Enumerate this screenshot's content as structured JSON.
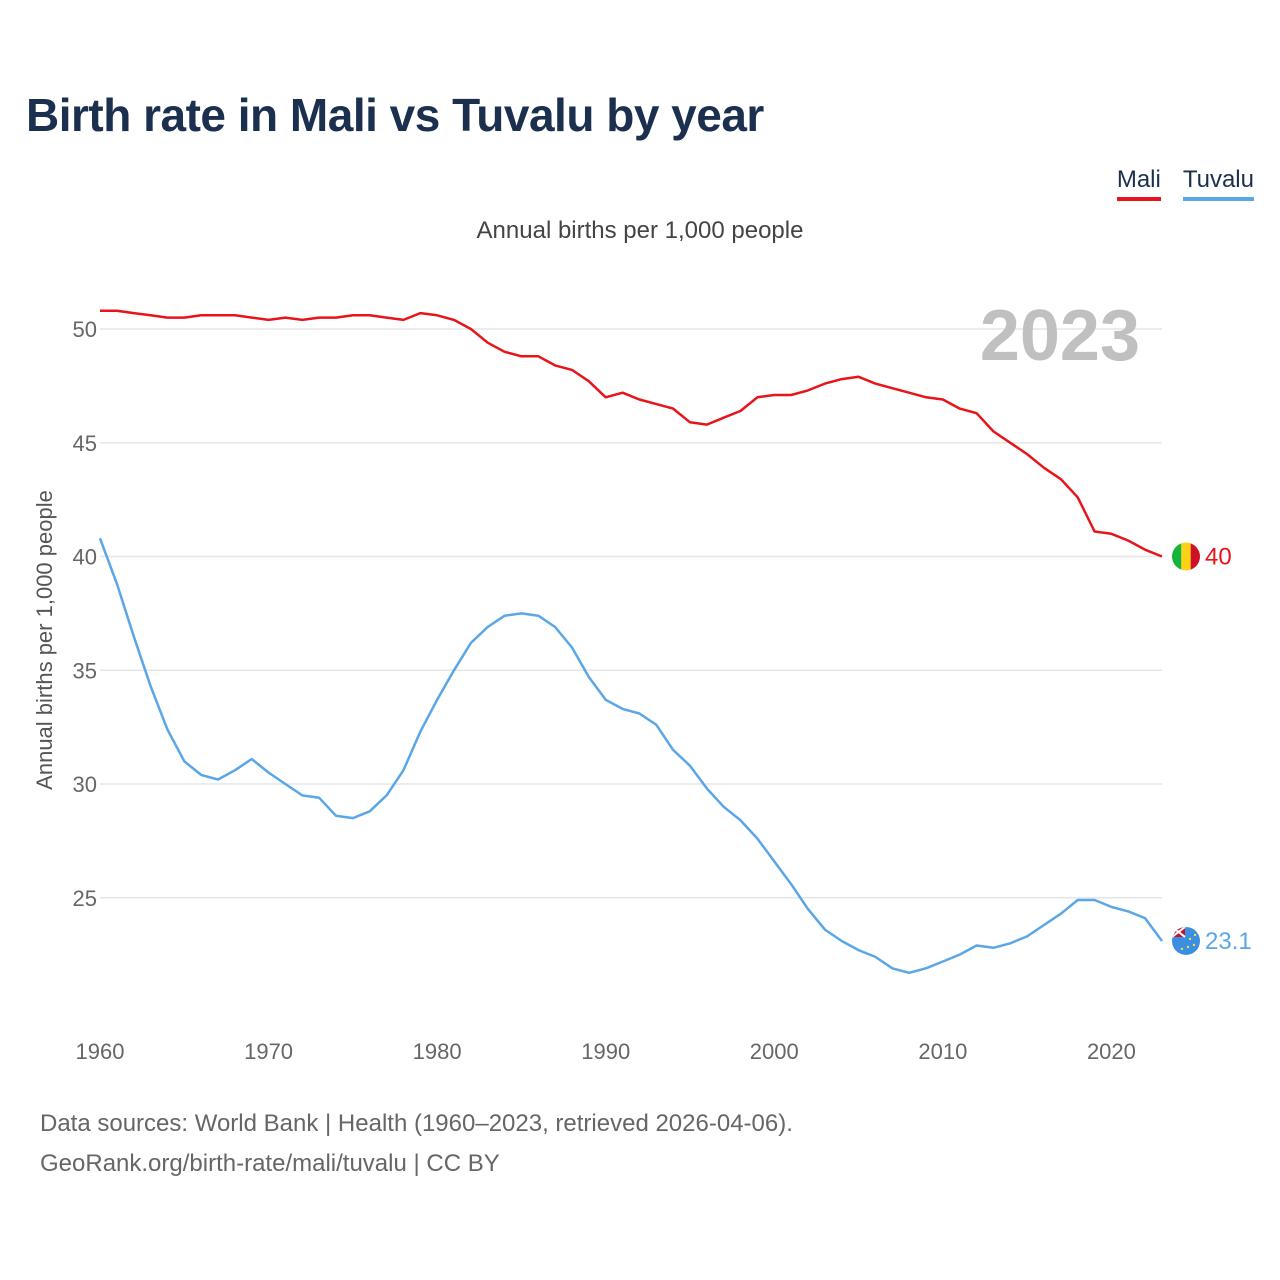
{
  "header": {
    "title": "Birth rate in Mali vs Tuvalu by year"
  },
  "legend": {
    "mali": "Mali",
    "tuvalu": "Tuvalu"
  },
  "footer": {
    "line1": "Data sources: World Bank | Health (1960–2023, retrieved 2026-04-06).",
    "line2": "GeoRank.org/birth-rate/mali/tuvalu | CC BY"
  },
  "colors": {
    "mali": "#e8141b",
    "tuvalu": "#5aa6e6",
    "title": "#1b2f4e"
  },
  "chart_data": {
    "type": "line",
    "title": "Birth rate in Mali vs Tuvalu by year",
    "subtitle": "Annual births per 1,000 people",
    "ylabel": "Annual births per 1,000 people",
    "xlabel": "",
    "highlight_year": "2023",
    "xlim": [
      1960,
      2023
    ],
    "ylim": [
      20,
      53
    ],
    "yticks": [
      25,
      30,
      35,
      40,
      45,
      50
    ],
    "xticks": [
      1960,
      1970,
      1980,
      1990,
      2000,
      2010,
      2020
    ],
    "grid": true,
    "legend_position": "top-right",
    "x": [
      1960,
      1961,
      1962,
      1963,
      1964,
      1965,
      1966,
      1967,
      1968,
      1969,
      1970,
      1971,
      1972,
      1973,
      1974,
      1975,
      1976,
      1977,
      1978,
      1979,
      1980,
      1981,
      1982,
      1983,
      1984,
      1985,
      1986,
      1987,
      1988,
      1989,
      1990,
      1991,
      1992,
      1993,
      1994,
      1995,
      1996,
      1997,
      1998,
      1999,
      2000,
      2001,
      2002,
      2003,
      2004,
      2005,
      2006,
      2007,
      2008,
      2009,
      2010,
      2011,
      2012,
      2013,
      2014,
      2015,
      2016,
      2017,
      2018,
      2019,
      2020,
      2021,
      2022,
      2023
    ],
    "series": [
      {
        "name": "Mali",
        "color": "#e8141b",
        "end_label": "40",
        "flag": "mali-flag",
        "values": [
          50.8,
          50.8,
          50.7,
          50.6,
          50.5,
          50.5,
          50.6,
          50.6,
          50.6,
          50.5,
          50.4,
          50.5,
          50.4,
          50.5,
          50.5,
          50.6,
          50.6,
          50.5,
          50.4,
          50.7,
          50.6,
          50.4,
          50.0,
          49.4,
          49.0,
          48.8,
          48.8,
          48.4,
          48.2,
          47.7,
          47.0,
          47.2,
          46.9,
          46.7,
          46.5,
          45.9,
          45.8,
          46.1,
          46.4,
          47.0,
          47.1,
          47.1,
          47.3,
          47.6,
          47.8,
          47.9,
          47.6,
          47.4,
          47.2,
          47.0,
          46.9,
          46.5,
          46.3,
          45.5,
          45.0,
          44.5,
          43.9,
          43.4,
          42.6,
          41.1,
          41.0,
          40.7,
          40.3,
          40.0
        ]
      },
      {
        "name": "Tuvalu",
        "color": "#5aa6e6",
        "end_label": "23.1",
        "flag": "tuvalu-flag",
        "values": [
          40.8,
          38.8,
          36.5,
          34.3,
          32.4,
          31.0,
          30.4,
          30.2,
          30.6,
          31.1,
          30.5,
          30.0,
          29.5,
          29.4,
          28.6,
          28.5,
          28.8,
          29.5,
          30.6,
          32.3,
          33.7,
          35.0,
          36.2,
          36.9,
          37.4,
          37.5,
          37.4,
          36.9,
          36.0,
          34.7,
          33.7,
          33.3,
          33.1,
          32.6,
          31.5,
          30.8,
          29.8,
          29.0,
          28.4,
          27.6,
          26.6,
          25.6,
          24.5,
          23.6,
          23.1,
          22.7,
          22.4,
          21.9,
          21.7,
          21.9,
          22.2,
          22.5,
          22.9,
          22.8,
          23.0,
          23.3,
          23.8,
          24.3,
          24.9,
          24.9,
          24.6,
          24.4,
          24.1,
          23.1
        ]
      }
    ]
  }
}
